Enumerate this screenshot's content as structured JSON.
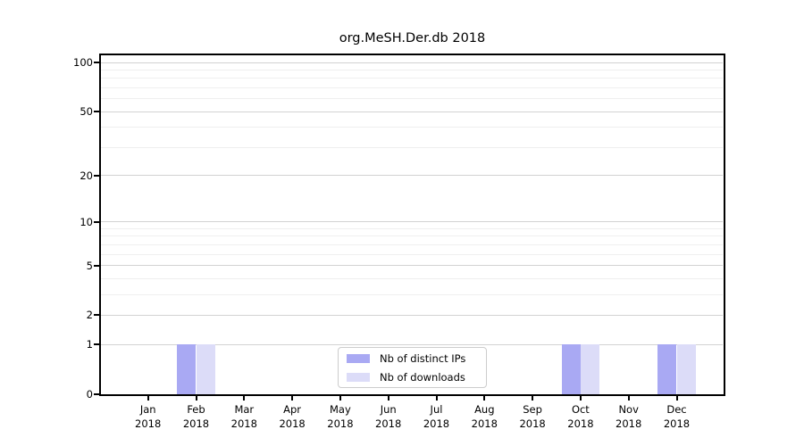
{
  "chart_data": {
    "type": "bar",
    "title": "org.MeSH.Der.db 2018",
    "x_categories": [
      {
        "month": "Jan",
        "year": "2018"
      },
      {
        "month": "Feb",
        "year": "2018"
      },
      {
        "month": "Mar",
        "year": "2018"
      },
      {
        "month": "Apr",
        "year": "2018"
      },
      {
        "month": "May",
        "year": "2018"
      },
      {
        "month": "Jun",
        "year": "2018"
      },
      {
        "month": "Jul",
        "year": "2018"
      },
      {
        "month": "Aug",
        "year": "2018"
      },
      {
        "month": "Sep",
        "year": "2018"
      },
      {
        "month": "Oct",
        "year": "2018"
      },
      {
        "month": "Nov",
        "year": "2018"
      },
      {
        "month": "Dec",
        "year": "2018"
      }
    ],
    "series": [
      {
        "name": "Nb of distinct IPs",
        "color": "#a9a9f3",
        "values": [
          0,
          1,
          0,
          0,
          0,
          0,
          0,
          0,
          0,
          1,
          0,
          1
        ]
      },
      {
        "name": "Nb of downloads",
        "color": "#dcdcf8",
        "values": [
          0,
          1,
          0,
          0,
          0,
          0,
          0,
          0,
          0,
          1,
          0,
          1
        ]
      }
    ],
    "yscale": "log1p",
    "ylim": [
      0,
      112
    ],
    "y_major_ticks": [
      0,
      1,
      2,
      5,
      10,
      20,
      50,
      100
    ],
    "y_minor_gridlines": [
      3,
      4,
      6,
      7,
      8,
      9,
      30,
      40,
      60,
      70,
      80,
      90
    ],
    "grid": true,
    "legend_position": "inside-bottom-center",
    "colors": {
      "spine": "#000000",
      "major_grid": "#d2d2d2",
      "minor_grid": "#efefef",
      "background": "#ffffff"
    }
  }
}
